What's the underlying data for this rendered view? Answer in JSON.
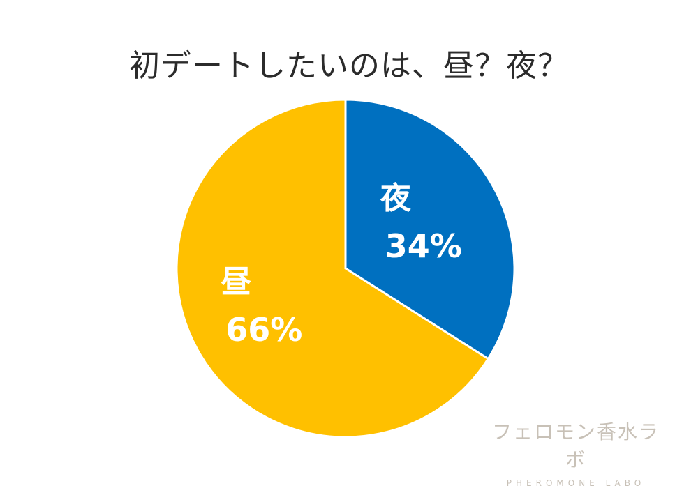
{
  "chart_data": {
    "type": "pie",
    "title": "初デートしたいのは、昼？夜？",
    "slices": [
      {
        "label": "夜",
        "value": 34,
        "value_label": "34%",
        "color": "#0070c0"
      },
      {
        "label": "昼",
        "value": 66,
        "value_label": "66%",
        "color": "#ffc000"
      }
    ],
    "start": "12 o'clock",
    "direction": "clockwise"
  },
  "watermark": {
    "line1": "フェロモン香水ラボ",
    "line2": "PHEROMONE LABO"
  }
}
